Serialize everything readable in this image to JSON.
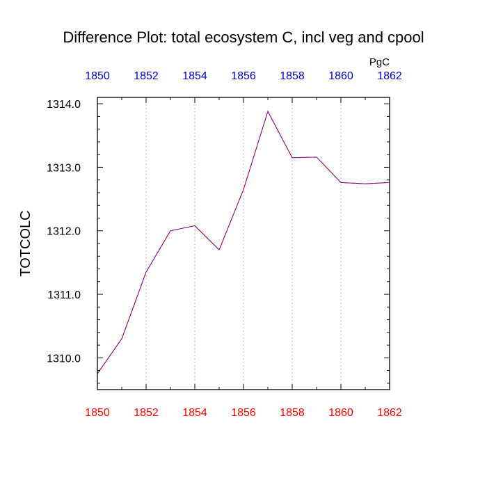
{
  "chart_data": {
    "type": "line",
    "title": "Difference Plot: total ecosystem C, incl veg and cpool",
    "units": "PgC",
    "ylabel": "TOTCOLC",
    "xlabel": "",
    "xlim": [
      1850,
      1862
    ],
    "ylim": [
      1309.5,
      1314.1
    ],
    "x_ticks": [
      1850,
      1852,
      1854,
      1856,
      1858,
      1860,
      1862
    ],
    "x_tick_labels": [
      "1850",
      "1852",
      "1854",
      "1856",
      "1858",
      "1860",
      "1862"
    ],
    "y_ticks": [
      1310.0,
      1311.0,
      1312.0,
      1313.0,
      1314.0
    ],
    "y_tick_labels": [
      "1310.0",
      "1311.0",
      "1312.0",
      "1313.0",
      "1314.0"
    ],
    "grid": "vertical dotted at major x ticks",
    "colors": {
      "bottom_axis_labels": "#ff0000",
      "top_axis_labels": "#0000cc",
      "series_a": "#0000ff",
      "series_b": "#ff0000",
      "grid": "#bbbbbb"
    },
    "series": [
      {
        "style": "solid",
        "x": [
          1850,
          1851,
          1852,
          1853,
          1854,
          1855,
          1856,
          1857,
          1858,
          1859,
          1860,
          1861,
          1862
        ],
        "values": [
          1309.75,
          1310.3,
          1311.35,
          1312.0,
          1312.08,
          1311.7,
          1312.65,
          1313.88,
          1313.15,
          1313.16,
          1312.76,
          1312.74,
          1312.76
        ]
      },
      {
        "style": "dashed",
        "x": [
          1850,
          1851,
          1852,
          1853,
          1854,
          1855,
          1856,
          1857,
          1858,
          1859,
          1860,
          1861,
          1862
        ],
        "values": [
          1309.75,
          1310.3,
          1311.35,
          1312.0,
          1312.08,
          1311.7,
          1312.65,
          1313.88,
          1313.15,
          1313.16,
          1312.76,
          1312.74,
          1312.76
        ]
      }
    ]
  }
}
